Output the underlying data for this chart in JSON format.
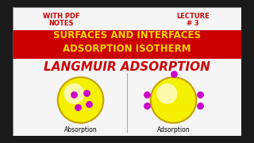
{
  "bg_color": "#1a1a1a",
  "main_bg": "#f5f5f5",
  "red_banner_color": "#cc0000",
  "banner_text_line1": "SURFACES AND INTERFACES",
  "banner_text_line2": "ADSORPTION ISOTHERM",
  "banner_text_color": "#ffd700",
  "top_left_line1": "WITH PDF",
  "top_left_line2": "NOTES",
  "top_right_line1": "LECTURE",
  "top_right_line2": "# 3",
  "top_text_color": "#cc0000",
  "langmuir_text": "LANGMUIR ADSORPTION",
  "langmuir_color": "#cc0000",
  "circle_fill": "#f5f000",
  "circle_edge": "#c8a000",
  "circle_highlight": "#fffff0",
  "dot_color": "#cc00cc",
  "label_color": "#000000",
  "divider_color": "#aaaaaa",
  "label1": "Absorption",
  "label2": "Adsorption",
  "border_color": "#555555"
}
